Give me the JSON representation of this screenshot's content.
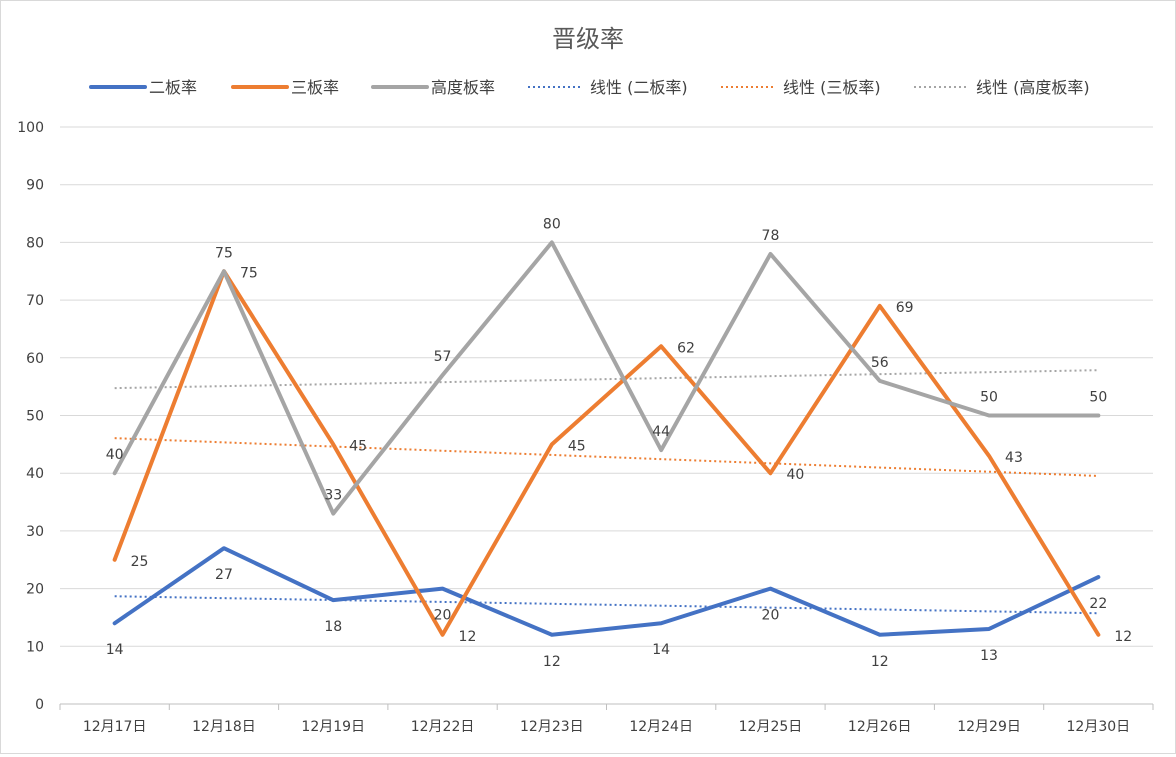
{
  "chart_data": {
    "type": "line",
    "title": "晋级率",
    "xlabel": "",
    "ylabel": "",
    "ylim": [
      0,
      100
    ],
    "yticks": [
      0,
      10,
      20,
      30,
      40,
      50,
      60,
      70,
      80,
      90,
      100
    ],
    "grid": true,
    "legend_position": "top",
    "categories": [
      "12月17日",
      "12月18日",
      "12月19日",
      "12月22日",
      "12月23日",
      "12月24日",
      "12月25日",
      "12月26日",
      "12月29日",
      "12月30日"
    ],
    "series": [
      {
        "name": "二板率",
        "color": "#4472c4",
        "values": [
          14,
          27,
          18,
          20,
          12,
          14,
          20,
          12,
          13,
          22
        ],
        "label_pos": "below"
      },
      {
        "name": "三板率",
        "color": "#ed7d31",
        "values": [
          25,
          75,
          45,
          12,
          45,
          62,
          40,
          69,
          43,
          12
        ],
        "label_pos": "right"
      },
      {
        "name": "高度板率",
        "color": "#a5a5a5",
        "values": [
          40,
          75,
          33,
          57,
          80,
          44,
          78,
          56,
          50,
          50
        ],
        "label_pos": "above"
      }
    ],
    "trendlines": [
      {
        "name": "线性 (二板率)",
        "series": "二板率",
        "type": "linear",
        "color": "#4472c4"
      },
      {
        "name": "线性 (三板率)",
        "series": "三板率",
        "type": "linear",
        "color": "#ed7d31"
      },
      {
        "name": "线性 (高度板率)",
        "series": "高度板率",
        "type": "linear",
        "color": "#a5a5a5"
      }
    ]
  }
}
